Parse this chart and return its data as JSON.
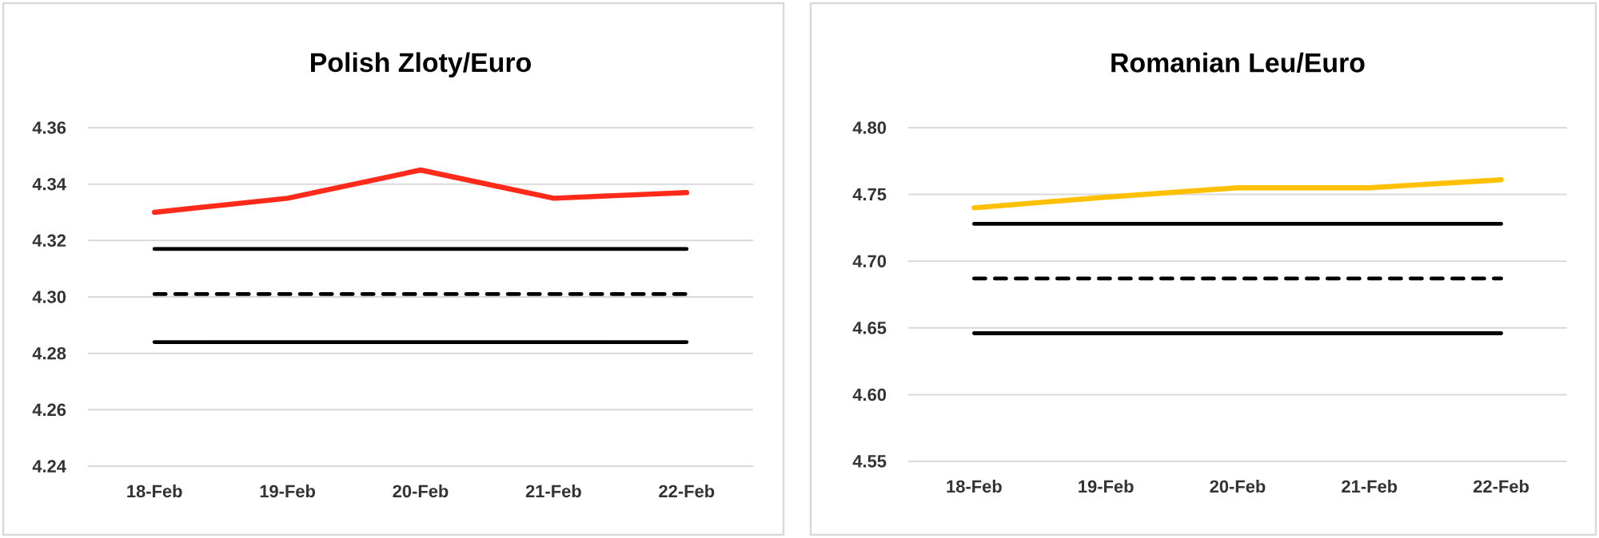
{
  "chart_data": [
    {
      "type": "line",
      "title": "Polish Zloty/Euro",
      "categories": [
        "18-Feb",
        "19-Feb",
        "20-Feb",
        "21-Feb",
        "22-Feb"
      ],
      "series": [
        {
          "color": "#ff2a1a",
          "values": [
            4.33,
            4.335,
            4.345,
            4.335,
            4.337
          ]
        },
        {
          "color": "#000000",
          "values": [
            4.317,
            4.317,
            4.317,
            4.317,
            4.317
          ]
        },
        {
          "color": "#000000",
          "line_style": "dashed",
          "values": [
            4.301,
            4.301,
            4.301,
            4.301,
            4.301
          ]
        },
        {
          "color": "#000000",
          "values": [
            4.284,
            4.284,
            4.284,
            4.284,
            4.284
          ]
        }
      ],
      "ylim": [
        4.24,
        4.36
      ],
      "yticks": [
        {
          "value": 4.24,
          "label": "4.24"
        },
        {
          "value": 4.26,
          "label": "4.26"
        },
        {
          "value": 4.28,
          "label": "4.28"
        },
        {
          "value": 4.3,
          "label": "4.30"
        },
        {
          "value": 4.32,
          "label": "4.32"
        },
        {
          "value": 4.34,
          "label": "4.34"
        },
        {
          "value": 4.36,
          "label": "4.36"
        }
      ],
      "grid": "y"
    },
    {
      "type": "line",
      "title": "Romanian Leu/Euro",
      "categories": [
        "18-Feb",
        "19-Feb",
        "20-Feb",
        "21-Feb",
        "22-Feb"
      ],
      "series": [
        {
          "color": "#ffc000",
          "values": [
            4.74,
            4.748,
            4.755,
            4.755,
            4.761
          ]
        },
        {
          "color": "#000000",
          "values": [
            4.728,
            4.728,
            4.728,
            4.728,
            4.728
          ]
        },
        {
          "color": "#000000",
          "line_style": "dashed",
          "values": [
            4.687,
            4.687,
            4.687,
            4.687,
            4.687
          ]
        },
        {
          "color": "#000000",
          "values": [
            4.646,
            4.646,
            4.646,
            4.646,
            4.646
          ]
        }
      ],
      "ylim": [
        4.55,
        4.8
      ],
      "yticks": [
        {
          "value": 4.55,
          "label": "4.55"
        },
        {
          "value": 4.6,
          "label": "4.60"
        },
        {
          "value": 4.65,
          "label": "4.65"
        },
        {
          "value": 4.7,
          "label": "4.70"
        },
        {
          "value": 4.75,
          "label": "4.75"
        },
        {
          "value": 4.8,
          "label": "4.80"
        }
      ],
      "grid": "y"
    }
  ]
}
